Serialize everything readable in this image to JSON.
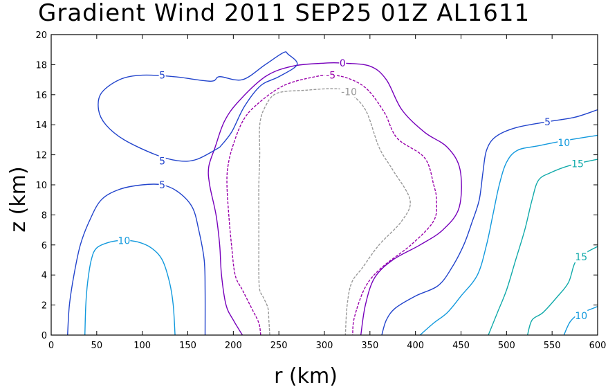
{
  "chart_data": {
    "type": "contour",
    "title": "Gradient Wind 2011 SEP25 01Z  AL1611",
    "xlabel": "r (km)",
    "ylabel": "z (km)",
    "xlim": [
      0,
      600
    ],
    "ylim": [
      0,
      20
    ],
    "xticks": [
      "0",
      "50",
      "100",
      "150",
      "200",
      "250",
      "300",
      "350",
      "400",
      "450",
      "500",
      "550",
      "600"
    ],
    "yticks": [
      "0",
      "2",
      "4",
      "6",
      "8",
      "10",
      "12",
      "14",
      "16",
      "18",
      "20"
    ],
    "contours": [
      {
        "name": "-10",
        "label": "-10",
        "color": "#999999",
        "dash": true,
        "points": [
          [
            240,
            0
          ],
          [
            239,
            1
          ],
          [
            238,
            1.8
          ],
          [
            233,
            2.5
          ],
          [
            229,
            3.0
          ],
          [
            228,
            4
          ],
          [
            228,
            6
          ],
          [
            228,
            8
          ],
          [
            228,
            10
          ],
          [
            229,
            12
          ],
          [
            229,
            14
          ],
          [
            235,
            15.2
          ],
          [
            248,
            16.1
          ],
          [
            280,
            16.3
          ],
          [
            310,
            16.4
          ],
          [
            325,
            16.2
          ],
          [
            345,
            15.0
          ],
          [
            360,
            12.5
          ],
          [
            375,
            11.0
          ],
          [
            394,
            9.0
          ],
          [
            385,
            7.6
          ],
          [
            360,
            6.0
          ],
          [
            342,
            4.5
          ],
          [
            330,
            3.5
          ],
          [
            325,
            2.0
          ],
          [
            323,
            0
          ]
        ],
        "labels": [
          {
            "text": "-10",
            "at": [
              327,
              16.2
            ]
          }
        ]
      },
      {
        "name": "-5",
        "label": "-5",
        "color": "#9900aa",
        "dash": true,
        "points": [
          [
            230,
            0
          ],
          [
            228,
            0.8
          ],
          [
            220,
            1.8
          ],
          [
            210,
            3.0
          ],
          [
            202,
            4.0
          ],
          [
            198,
            6
          ],
          [
            195,
            8
          ],
          [
            193,
            10
          ],
          [
            194,
            11.2
          ],
          [
            199,
            12.5
          ],
          [
            210,
            14.2
          ],
          [
            225,
            15.3
          ],
          [
            255,
            16.6
          ],
          [
            290,
            17.2
          ],
          [
            310,
            17.3
          ],
          [
            330,
            17.0
          ],
          [
            348,
            16.3
          ],
          [
            366,
            14.8
          ],
          [
            380,
            13.1
          ],
          [
            410,
            11.8
          ],
          [
            420,
            10.0
          ],
          [
            423,
            9.0
          ],
          [
            420,
            7.6
          ],
          [
            395,
            6.0
          ],
          [
            363,
            4.5
          ],
          [
            345,
            3.2
          ],
          [
            333,
            1.2
          ],
          [
            331,
            0
          ]
        ],
        "labels": [
          {
            "text": "-5",
            "at": [
              307,
              17.3
            ]
          }
        ]
      },
      {
        "name": "0",
        "label": "0",
        "color": "#7700bb",
        "dash": false,
        "points": [
          [
            210,
            0
          ],
          [
            200,
            1.0
          ],
          [
            192,
            2.0
          ],
          [
            187,
            4
          ],
          [
            185,
            6
          ],
          [
            181,
            8
          ],
          [
            174,
            10
          ],
          [
            173,
            11.2
          ],
          [
            180,
            12.5
          ],
          [
            190,
            14.2
          ],
          [
            205,
            15.5
          ],
          [
            235,
            17.2
          ],
          [
            265,
            17.9
          ],
          [
            300,
            18.1
          ],
          [
            320,
            18.1
          ],
          [
            350,
            17.9
          ],
          [
            368,
            17.0
          ],
          [
            385,
            15.0
          ],
          [
            410,
            13.5
          ],
          [
            435,
            12.5
          ],
          [
            449,
            11.0
          ],
          [
            448,
            8.5
          ],
          [
            430,
            7.0
          ],
          [
            405,
            6.0
          ],
          [
            375,
            5.0
          ],
          [
            355,
            3.8
          ],
          [
            345,
            2.0
          ],
          [
            340,
            0
          ]
        ],
        "labels": [
          {
            "text": "0",
            "at": [
              320,
              18.1
            ]
          }
        ]
      },
      {
        "name": "5-upper-loop",
        "label": "5",
        "color": "#2244cc",
        "dash": false,
        "points": [
          [
            185,
            12.5
          ],
          [
            160,
            11.7
          ],
          [
            140,
            11.6
          ],
          [
            115,
            12.0
          ],
          [
            80,
            13.0
          ],
          [
            60,
            14.0
          ],
          [
            52,
            15.0
          ],
          [
            55,
            16.1
          ],
          [
            75,
            17.0
          ],
          [
            100,
            17.3
          ],
          [
            135,
            17.2
          ],
          [
            175,
            16.9
          ],
          [
            185,
            17.2
          ],
          [
            210,
            17.0
          ],
          [
            235,
            18.0
          ],
          [
            255,
            18.8
          ],
          [
            260,
            18.7
          ],
          [
            270,
            18.0
          ],
          [
            250,
            17.2
          ],
          [
            230,
            16.6
          ],
          [
            212,
            15.2
          ],
          [
            198,
            13.5
          ],
          [
            185,
            12.5
          ]
        ],
        "labels": [
          {
            "text": "5",
            "at": [
              122,
              17.3
            ]
          },
          {
            "text": "5",
            "at": [
              122,
              11.6
            ]
          }
        ]
      },
      {
        "name": "5-lower-dome",
        "label": "5",
        "color": "#2244cc",
        "dash": false,
        "points": [
          [
            18,
            0
          ],
          [
            20,
            2
          ],
          [
            25,
            4
          ],
          [
            32,
            6
          ],
          [
            42,
            7.6
          ],
          [
            55,
            9.0
          ],
          [
            75,
            9.7
          ],
          [
            100,
            10.0
          ],
          [
            122,
            10.0
          ],
          [
            140,
            9.5
          ],
          [
            155,
            8.5
          ],
          [
            162,
            7.0
          ],
          [
            168,
            5.0
          ],
          [
            169,
            3.0
          ],
          [
            169,
            0
          ]
        ],
        "labels": [
          {
            "text": "5",
            "at": [
              122,
              10.0
            ]
          }
        ]
      },
      {
        "name": "5-right",
        "label": "5",
        "color": "#2244cc",
        "dash": false,
        "points": [
          [
            363,
            0
          ],
          [
            368,
            1.0
          ],
          [
            378,
            1.8
          ],
          [
            400,
            2.6
          ],
          [
            425,
            3.3
          ],
          [
            440,
            4.5
          ],
          [
            453,
            6.0
          ],
          [
            462,
            7.5
          ],
          [
            470,
            9.0
          ],
          [
            474,
            10.8
          ],
          [
            478,
            12.3
          ],
          [
            488,
            13.2
          ],
          [
            510,
            13.8
          ],
          [
            545,
            14.2
          ],
          [
            575,
            14.5
          ],
          [
            600,
            15.0
          ]
        ],
        "labels": [
          {
            "text": "5",
            "at": [
              545,
              14.2
            ]
          }
        ]
      },
      {
        "name": "10-lower-dome",
        "label": "10",
        "color": "#1199dd",
        "dash": false,
        "points": [
          [
            37,
            0
          ],
          [
            38,
            2
          ],
          [
            40,
            3.5
          ],
          [
            44,
            5.0
          ],
          [
            50,
            5.8
          ],
          [
            65,
            6.2
          ],
          [
            80,
            6.3
          ],
          [
            95,
            6.2
          ],
          [
            110,
            5.8
          ],
          [
            122,
            5.0
          ],
          [
            130,
            3.5
          ],
          [
            134,
            2.0
          ],
          [
            136,
            0
          ]
        ],
        "labels": [
          {
            "text": "10",
            "at": [
              80,
              6.3
            ]
          }
        ]
      },
      {
        "name": "10-right",
        "label": "10",
        "color": "#1199dd",
        "dash": false,
        "points": [
          [
            405,
            0
          ],
          [
            420,
            0.8
          ],
          [
            435,
            1.5
          ],
          [
            450,
            2.6
          ],
          [
            468,
            4.0
          ],
          [
            478,
            6.0
          ],
          [
            485,
            8.0
          ],
          [
            492,
            10.0
          ],
          [
            500,
            11.5
          ],
          [
            512,
            12.3
          ],
          [
            535,
            12.6
          ],
          [
            560,
            12.9
          ],
          [
            600,
            13.3
          ]
        ],
        "labels": [
          {
            "text": "10",
            "at": [
              563,
              12.8
            ]
          }
        ]
      },
      {
        "name": "15-right",
        "label": "15",
        "color": "#11aaaa",
        "dash": false,
        "points": [
          [
            480,
            0
          ],
          [
            490,
            1.5
          ],
          [
            500,
            3.0
          ],
          [
            510,
            5.0
          ],
          [
            520,
            7.0
          ],
          [
            528,
            9.0
          ],
          [
            535,
            10.3
          ],
          [
            548,
            10.8
          ],
          [
            570,
            11.3
          ],
          [
            600,
            11.7
          ]
        ],
        "labels": [
          {
            "text": "15",
            "at": [
              578,
              11.4
            ]
          }
        ]
      },
      {
        "name": "15-right-lower",
        "label": "15",
        "color": "#11aaaa",
        "dash": false,
        "points": [
          [
            523,
            0
          ],
          [
            528,
            1.0
          ],
          [
            540,
            1.5
          ],
          [
            555,
            2.5
          ],
          [
            568,
            3.5
          ],
          [
            575,
            4.8
          ],
          [
            585,
            5.4
          ],
          [
            600,
            5.9
          ]
        ],
        "labels": [
          {
            "text": "15",
            "at": [
              582,
              5.2
            ]
          }
        ]
      },
      {
        "name": "10-right-lower",
        "label": "10",
        "color": "#1199dd",
        "dash": false,
        "points": [
          [
            563,
            0
          ],
          [
            570,
            0.9
          ],
          [
            580,
            1.4
          ],
          [
            600,
            1.9
          ]
        ],
        "labels": [
          {
            "text": "10",
            "at": [
              582,
              1.3
            ]
          }
        ]
      }
    ]
  }
}
